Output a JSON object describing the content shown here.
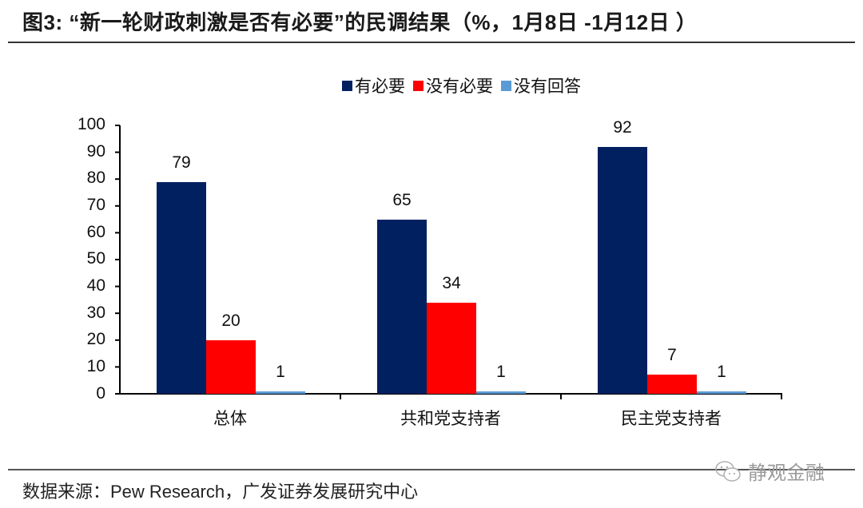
{
  "title": "图3:   “新一轮财政刺激是否有必要”的民调结果（%，1月8日 -1月12日 ）",
  "legend": [
    {
      "label": "有必要",
      "color": "#002060"
    },
    {
      "label": "没有必要",
      "color": "#ff0000"
    },
    {
      "label": "没有回答",
      "color": "#5b9bd5"
    }
  ],
  "source": "数据来源：Pew Research，广发证券发展研究中心",
  "watermark": {
    "text": "静观金融",
    "icon": "wechat-icon"
  },
  "chart_data": {
    "type": "bar",
    "title": "“新一轮财政刺激是否有必要”的民调结果（%，1月8日 -1月12日 ）",
    "categories": [
      "总体",
      "共和党支持者",
      "民主党支持者"
    ],
    "series": [
      {
        "name": "有必要",
        "color": "#002060",
        "values": [
          79,
          65,
          92
        ]
      },
      {
        "name": "没有必要",
        "color": "#ff0000",
        "values": [
          20,
          34,
          7
        ]
      },
      {
        "name": "没有回答",
        "color": "#5b9bd5",
        "values": [
          1,
          1,
          1
        ]
      }
    ],
    "xlabel": "",
    "ylabel": "",
    "ylim": [
      0,
      100
    ],
    "yticks": [
      0,
      10,
      20,
      30,
      40,
      50,
      60,
      70,
      80,
      90,
      100
    ],
    "grid": false,
    "legend_position": "top",
    "data_labels": true
  }
}
